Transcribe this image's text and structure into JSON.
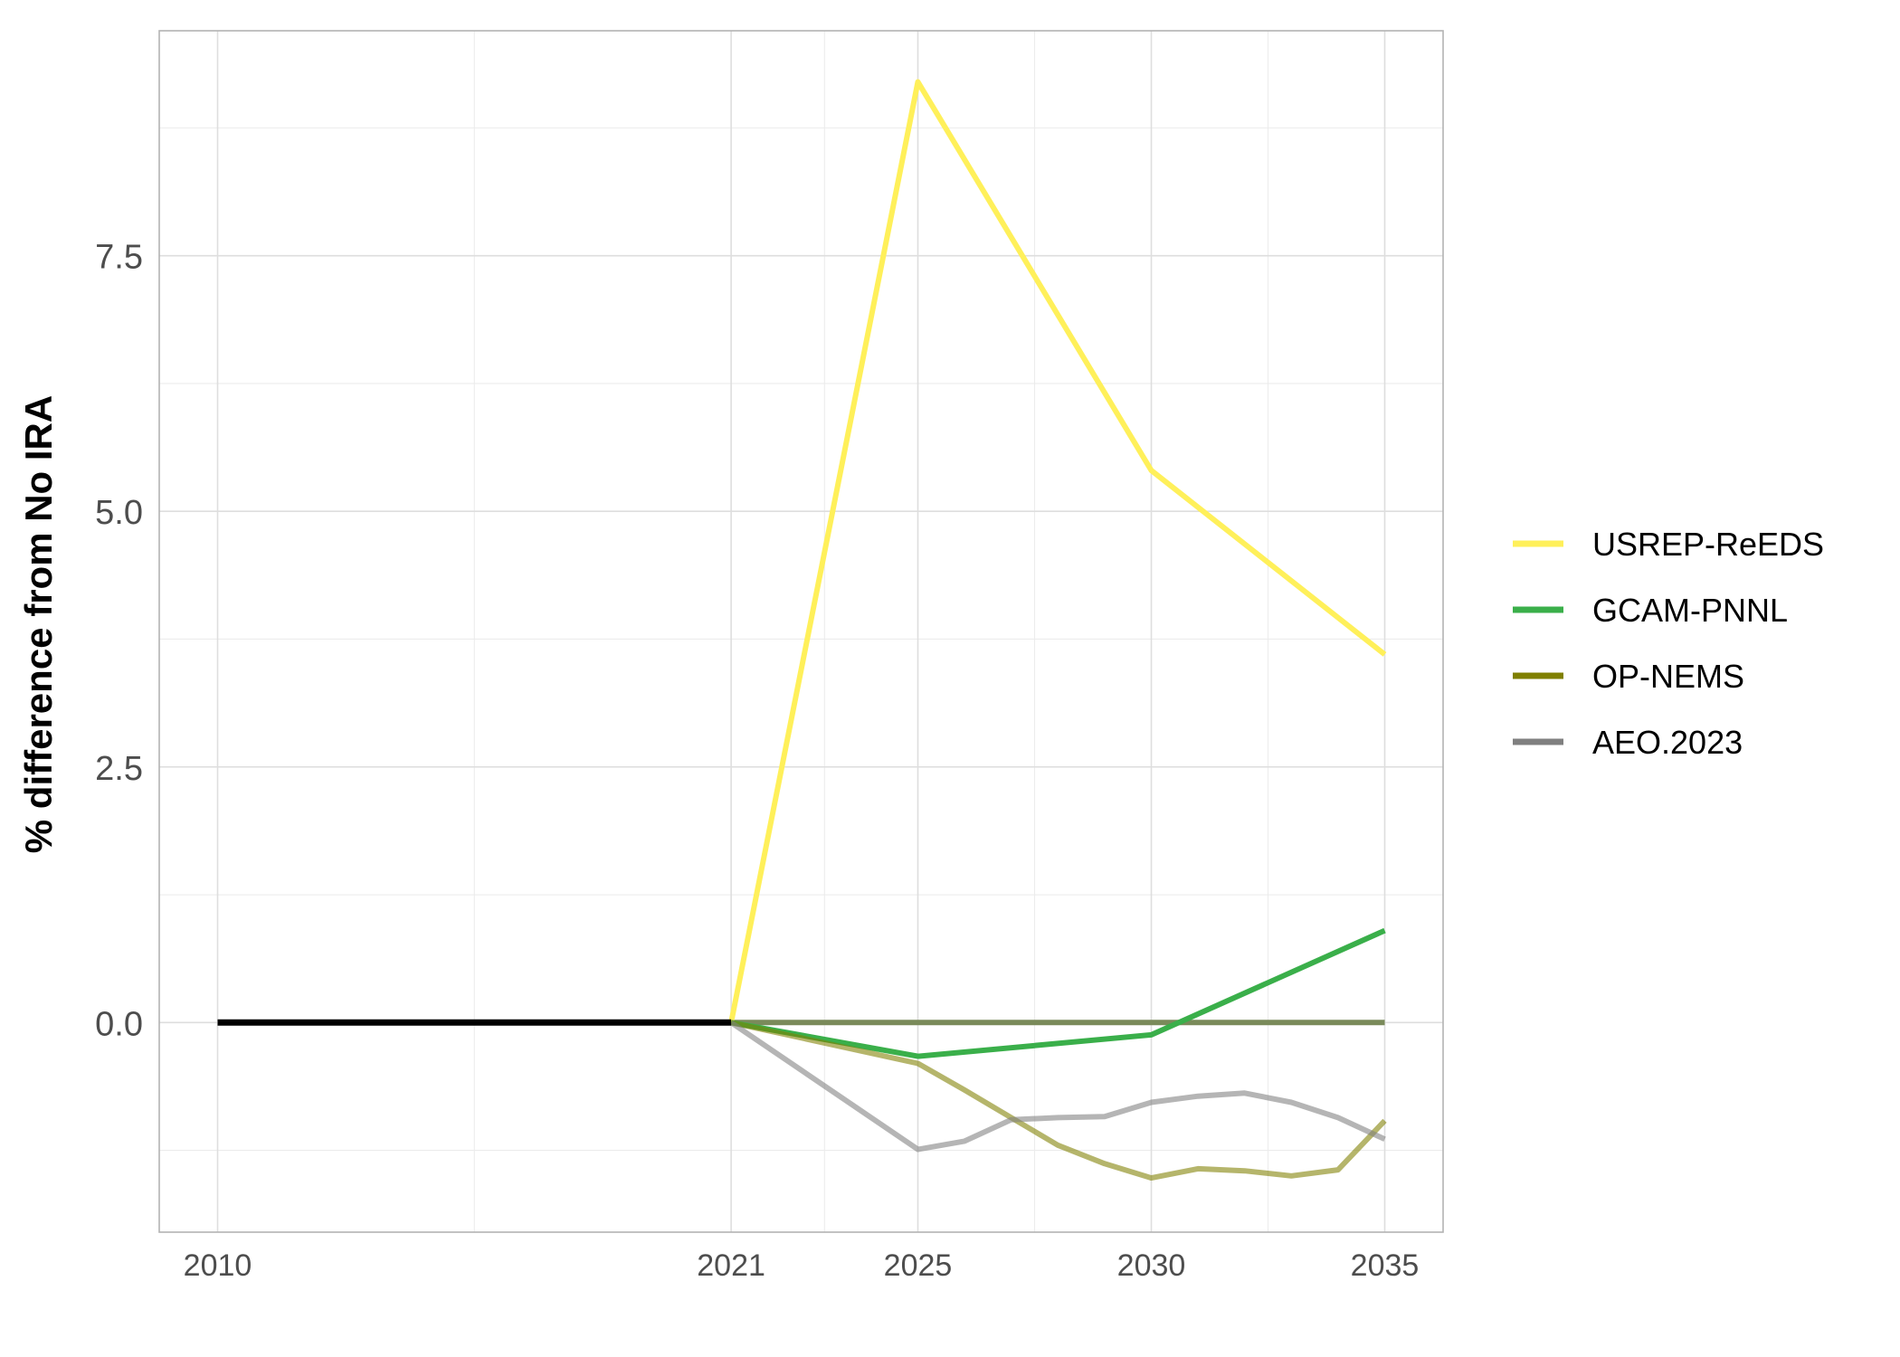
{
  "chart_data": {
    "type": "line",
    "title": "",
    "xlabel": "",
    "ylabel": "% difference from No IRA",
    "xlim": [
      2008.75,
      2036.25
    ],
    "ylim": [
      -2.05,
      9.7
    ],
    "x_ticks": [
      2010,
      2021,
      2025,
      2030,
      2035
    ],
    "y_ticks": [
      0.0,
      2.5,
      5.0,
      7.5
    ],
    "y_tick_labels": [
      "0.0",
      "2.5",
      "5.0",
      "7.5"
    ],
    "grid": true,
    "legend_position": "right",
    "historical": {
      "color": "#000000",
      "points": [
        [
          2010,
          0
        ],
        [
          2021,
          0
        ]
      ]
    },
    "series": [
      {
        "name": "USREP-ReEDS",
        "color": "#FFF05A",
        "opacity": 1,
        "points": [
          [
            2021,
            0
          ],
          [
            2025,
            9.2
          ],
          [
            2030,
            5.4
          ],
          [
            2035,
            3.6
          ]
        ]
      },
      {
        "name": "GCAM-PNNL",
        "color": "#3AAF4A",
        "opacity": 1,
        "points": [
          [
            2021,
            0
          ],
          [
            2025,
            -0.33
          ],
          [
            2030,
            -0.12
          ],
          [
            2035,
            0.9
          ]
        ]
      },
      {
        "name": "OP-NEMS",
        "color": "#808000",
        "opacity": 0.58,
        "points": [
          [
            2021,
            0
          ],
          [
            2025,
            -0.4
          ],
          [
            2026,
            -0.66
          ],
          [
            2027,
            -0.93
          ],
          [
            2028,
            -1.2
          ],
          [
            2029,
            -1.38
          ],
          [
            2030,
            -1.52
          ],
          [
            2031,
            -1.43
          ],
          [
            2032,
            -1.45
          ],
          [
            2033,
            -1.5
          ],
          [
            2034,
            -1.44
          ],
          [
            2035,
            -0.96
          ]
        ]
      },
      {
        "name": "AEO.2023",
        "color": "#808080",
        "opacity": 0.58,
        "points": [
          [
            2021,
            0
          ],
          [
            2025,
            -1.24
          ],
          [
            2026,
            -1.16
          ],
          [
            2027,
            -0.95
          ],
          [
            2028,
            -0.93
          ],
          [
            2029,
            -0.92
          ],
          [
            2030,
            -0.78
          ],
          [
            2031,
            -0.72
          ],
          [
            2032,
            -0.69
          ],
          [
            2033,
            -0.78
          ],
          [
            2034,
            -0.93
          ],
          [
            2035,
            -1.14
          ]
        ]
      }
    ],
    "reference_line": {
      "color": "#7a8a5a",
      "y": 0,
      "x_range": [
        2021,
        2035
      ]
    }
  }
}
